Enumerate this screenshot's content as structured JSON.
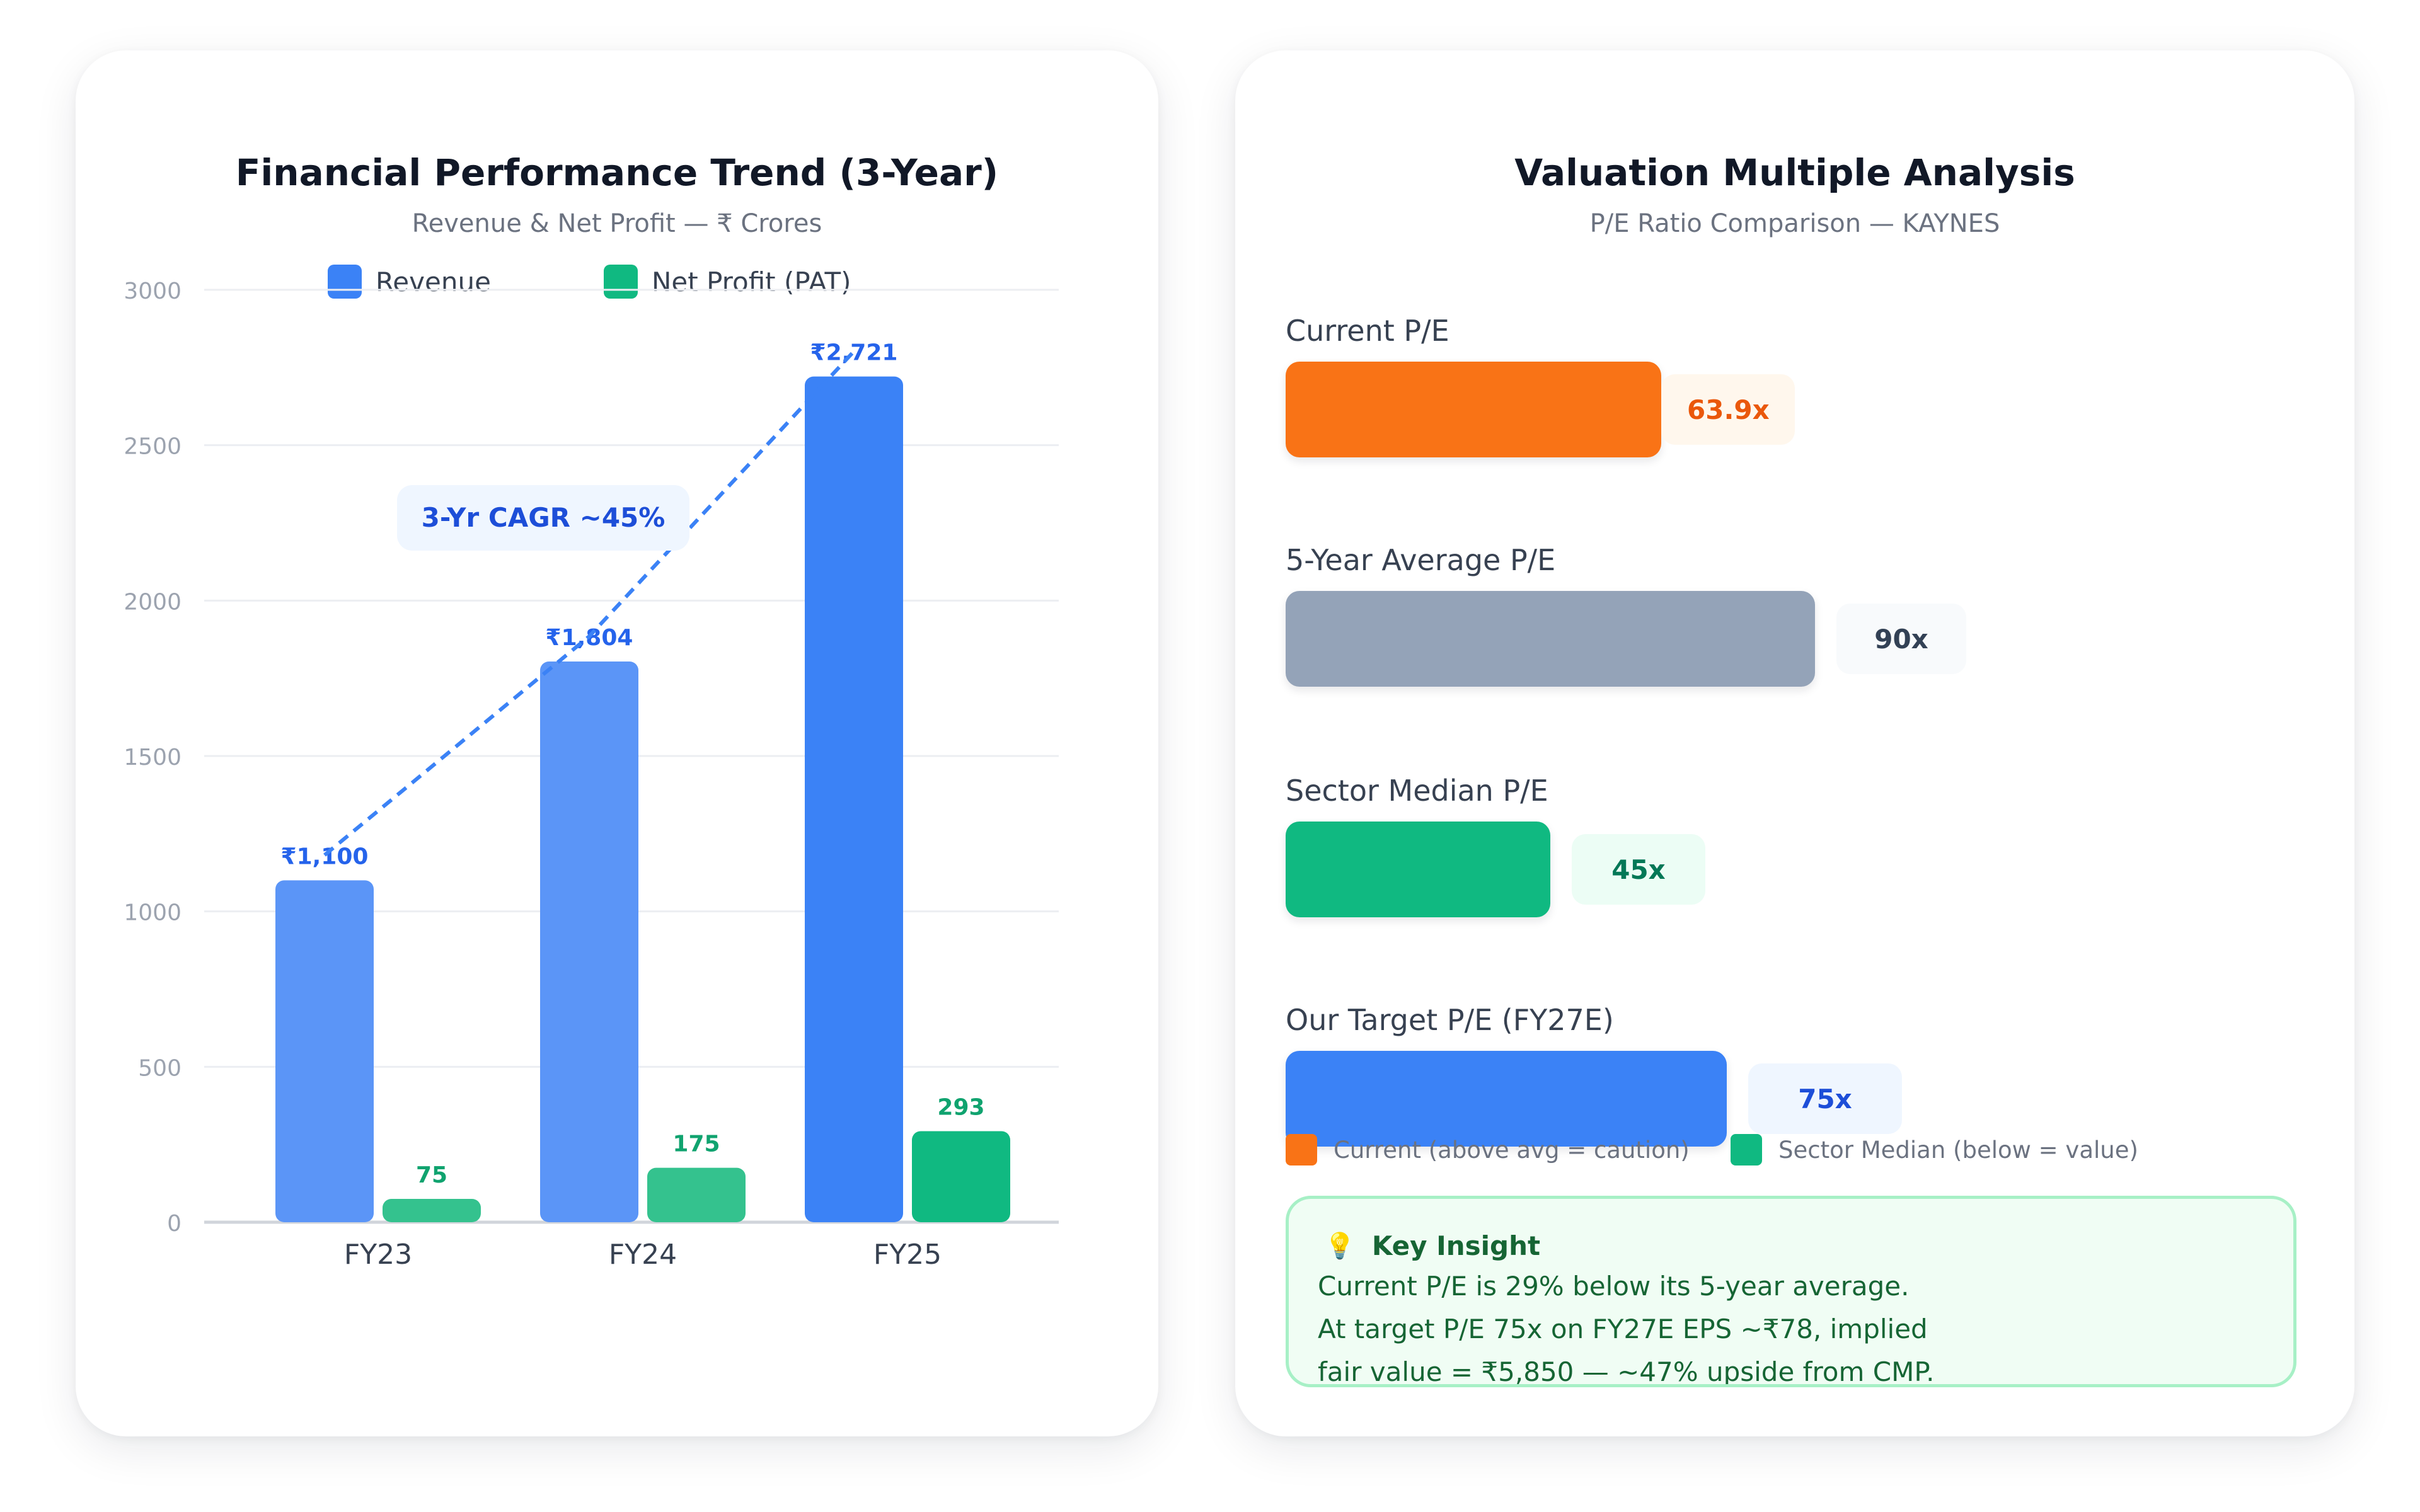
{
  "left_card": {
    "title": "Financial Performance Trend (3-Year)",
    "subtitle": "Revenue & Net Profit — ₹ Crores",
    "legend": {
      "revenue": "Revenue",
      "profit": "Net Profit (PAT)"
    },
    "cagr_label": "3-Yr CAGR ~45%"
  },
  "chart_data": [
    {
      "type": "bar",
      "title": "Financial Performance Trend (3-Year)",
      "subtitle": "Revenue & Net Profit — ₹ Crores",
      "categories": [
        "FY23",
        "FY24",
        "FY25"
      ],
      "series": [
        {
          "name": "Revenue",
          "values": [
            1100,
            1804,
            2721
          ],
          "labels": [
            "₹1,100",
            "₹1,804",
            "₹2,721"
          ],
          "colors": [
            "#5b95f7",
            "#5b95f7",
            "#3b82f6"
          ],
          "label_color": "#2563eb"
        },
        {
          "name": "Net Profit (PAT)",
          "values": [
            75,
            175,
            293
          ],
          "labels": [
            "75",
            "175",
            "293"
          ],
          "colors": [
            "#34c28e",
            "#34c28e",
            "#10b981"
          ],
          "label_color": "#10a36f"
        }
      ],
      "ylim": [
        0,
        3000
      ],
      "yticks": [
        "0",
        "500",
        "1000",
        "1500",
        "2000",
        "2500",
        "3000"
      ],
      "ytick_values": [
        0,
        500,
        1000,
        1500,
        2000,
        2500,
        3000
      ],
      "grid": true,
      "legend": "top",
      "annotation": "3-Yr CAGR ~45%"
    },
    {
      "type": "bar",
      "orientation": "horizontal",
      "title": "Valuation Multiple Analysis",
      "subtitle": "P/E Ratio Comparison — KAYNES",
      "categories": [
        "Current P/E",
        "5-Year Average P/E",
        "Sector Median P/E",
        "Our Target P/E (FY27E)"
      ],
      "values": [
        63.9,
        90,
        45,
        75
      ],
      "value_labels": [
        "63.9x",
        "90x",
        "45x",
        "75x"
      ]
    }
  ],
  "right_card": {
    "title": "Valuation Multiple Analysis",
    "subtitle": "P/E Ratio Comparison — KAYNES",
    "rows": [
      {
        "label": "Current P/E",
        "value": 63.9,
        "value_text": "63.9x",
        "bar_color": "#f97316",
        "chip_bg": "#fff7ed",
        "chip_color": "#ea580c"
      },
      {
        "label": "5-Year Average P/E",
        "value": 90,
        "value_text": "90x",
        "bar_color": "#94a3b8",
        "chip_bg": "#f8fafc",
        "chip_color": "#334155"
      },
      {
        "label": "Sector Median P/E",
        "value": 45,
        "value_text": "45x",
        "bar_color": "#10b981",
        "chip_bg": "#ecfdf5",
        "chip_color": "#047857"
      },
      {
        "label": "Our Target P/E (FY27E)",
        "value": 75,
        "value_text": "75x",
        "bar_color": "#3b82f6",
        "chip_bg": "#eff6ff",
        "chip_color": "#1d4ed8"
      }
    ],
    "legend": {
      "current": "Current (above avg = caution)",
      "sector": "Sector Median (below = value)",
      "current_color": "#f97316",
      "sector_color": "#10b981"
    },
    "insight": {
      "title": "Key Insight",
      "lines": [
        "Current P/E is 29% below its 5-year average.",
        "At target P/E 75x on FY27E EPS ~₹78, implied",
        "fair value = ₹5,850 — ~47% upside from CMP."
      ]
    }
  }
}
